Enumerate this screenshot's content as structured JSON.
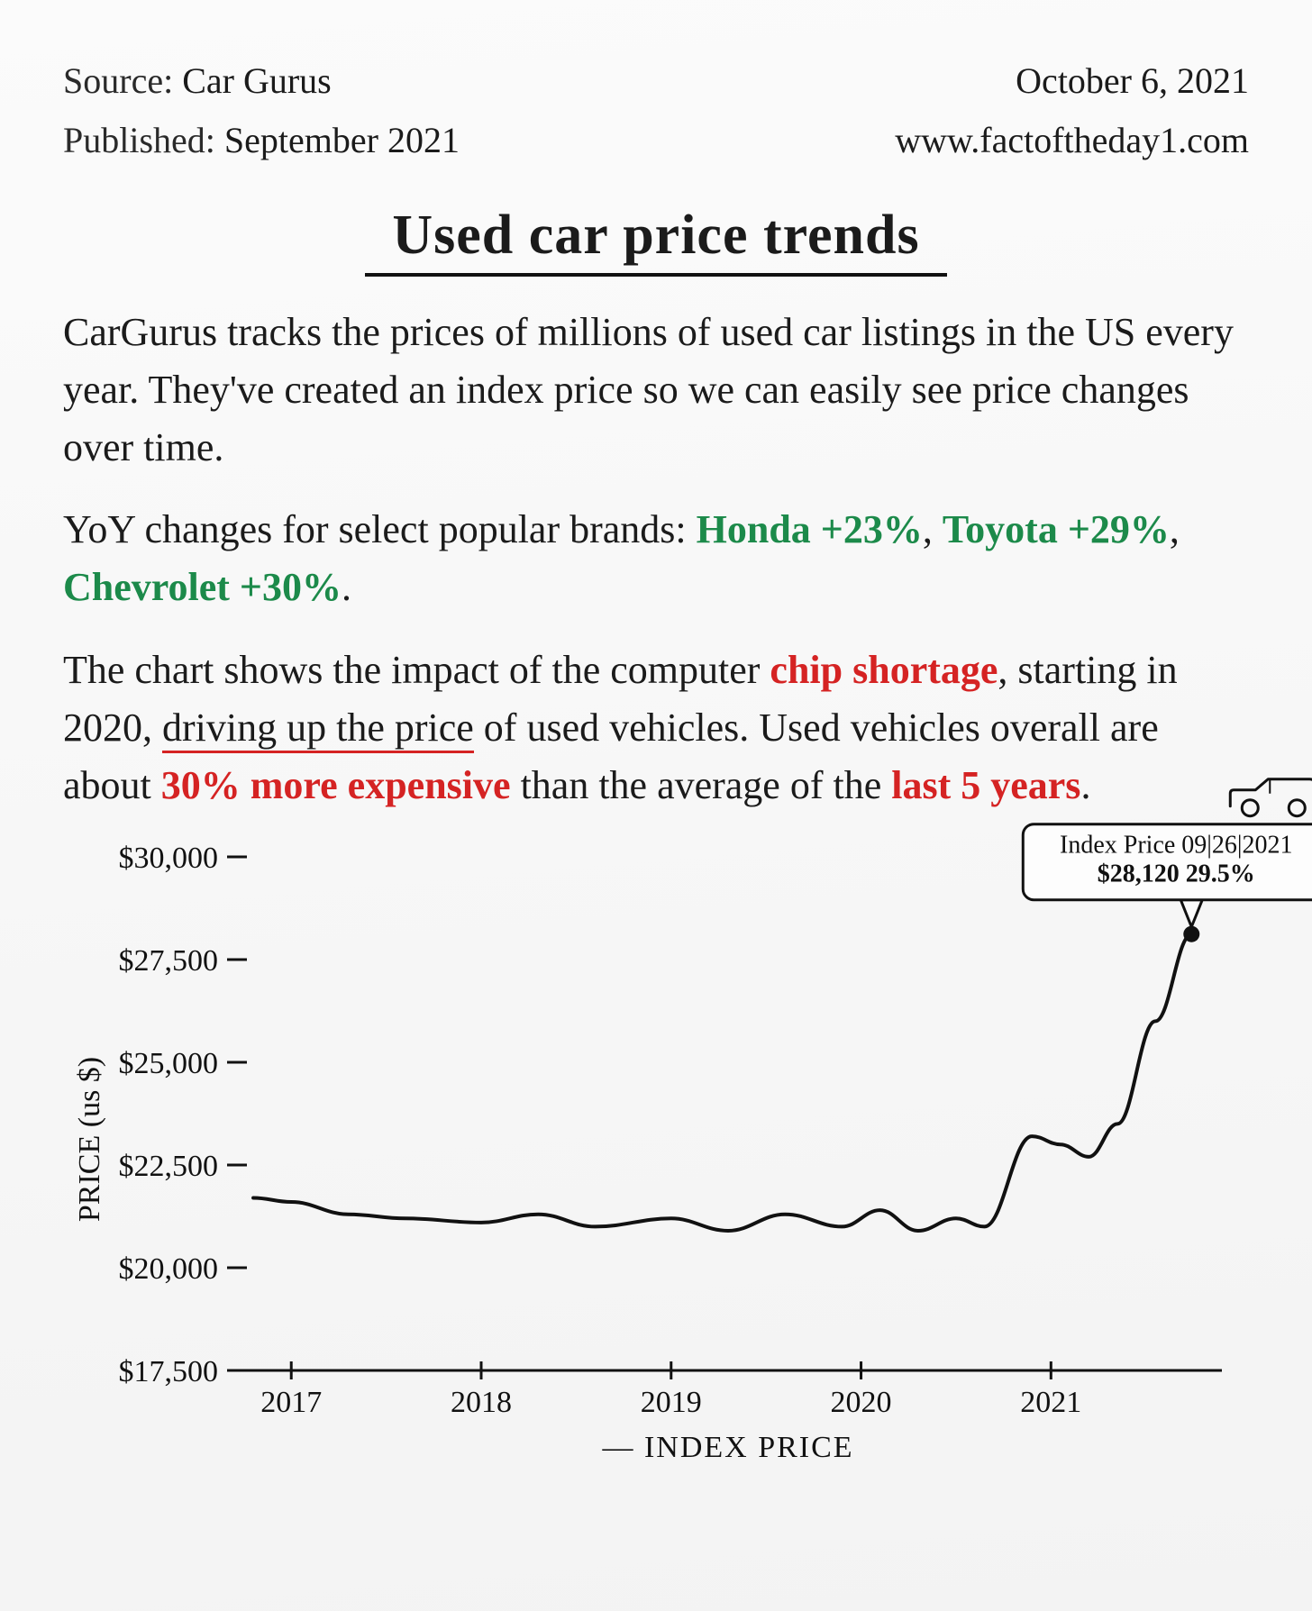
{
  "header": {
    "source_label": "Source:",
    "source_value": "Car Gurus",
    "published_label": "Published:",
    "published_value": "September 2021",
    "date": "October 6, 2021",
    "website": "www.factoftheday1.com"
  },
  "title": "Used car price trends",
  "paragraphs": {
    "p1": "CarGurus tracks the prices of millions of used car listings in the US every year. They've created an index price so we can easily see price changes over time.",
    "p2_prefix": "YoY changes for select popular brands: ",
    "p2_honda": "Honda +23%",
    "p2_sep1": ", ",
    "p2_toyota": "Toyota +29%",
    "p2_sep2": ", ",
    "p2_chevy": "Chevrolet +30%",
    "p2_end": ".",
    "p3_a": "The chart shows the impact of the computer ",
    "p3_chip": "chip shortage",
    "p3_b": ", starting in 2020, ",
    "p3_drive": "driving up the price",
    "p3_c": " of used vehicles. Used vehicles overall are about ",
    "p3_30": "30% more expensive",
    "p3_d": " than the average of the ",
    "p3_5y": "last 5 years",
    "p3_e": "."
  },
  "chart": {
    "type": "line",
    "y_axis_label": "PRICE (us $)",
    "x_axis_label": "— INDEX PRICE",
    "ylim": [
      17500,
      30000
    ],
    "ytick_step": 2500,
    "ytick_labels": [
      "$17,500",
      "$20,000",
      "$22,500",
      "$25,000",
      "$27,500",
      "$30,000"
    ],
    "xlim": [
      2016.7,
      2021.9
    ],
    "xticks": [
      2017,
      2018,
      2019,
      2020,
      2021
    ],
    "xtick_labels": [
      "2017",
      "2018",
      "2019",
      "2020",
      "2021"
    ],
    "line_color": "#111111",
    "line_width": 4,
    "background": "#f6f6f6",
    "tick_font_size": 34,
    "axis_font_size": 34,
    "series": [
      {
        "x": 2016.8,
        "y": 21700
      },
      {
        "x": 2017.0,
        "y": 21600
      },
      {
        "x": 2017.3,
        "y": 21300
      },
      {
        "x": 2017.6,
        "y": 21200
      },
      {
        "x": 2018.0,
        "y": 21100
      },
      {
        "x": 2018.3,
        "y": 21300
      },
      {
        "x": 2018.6,
        "y": 21000
      },
      {
        "x": 2019.0,
        "y": 21200
      },
      {
        "x": 2019.3,
        "y": 20900
      },
      {
        "x": 2019.6,
        "y": 21300
      },
      {
        "x": 2019.9,
        "y": 21000
      },
      {
        "x": 2020.1,
        "y": 21400
      },
      {
        "x": 2020.3,
        "y": 20900
      },
      {
        "x": 2020.5,
        "y": 21200
      },
      {
        "x": 2020.65,
        "y": 21000
      },
      {
        "x": 2020.9,
        "y": 23200
      },
      {
        "x": 2021.05,
        "y": 23000
      },
      {
        "x": 2021.2,
        "y": 22700
      },
      {
        "x": 2021.35,
        "y": 23500
      },
      {
        "x": 2021.55,
        "y": 26000
      },
      {
        "x": 2021.74,
        "y": 28120
      }
    ],
    "callout": {
      "line1": "Index Price 09|26|2021",
      "line2": "$28,120   29.5%",
      "point_x": 2021.74,
      "point_y": 28120,
      "font_size": 28,
      "box_stroke": "#111111",
      "box_fill": "#fdfdfd"
    }
  },
  "colors": {
    "text": "#1b1b1b",
    "green": "#1c8a4a",
    "red": "#d52323",
    "underline": "#d52323",
    "bg": "#f6f6f6"
  }
}
